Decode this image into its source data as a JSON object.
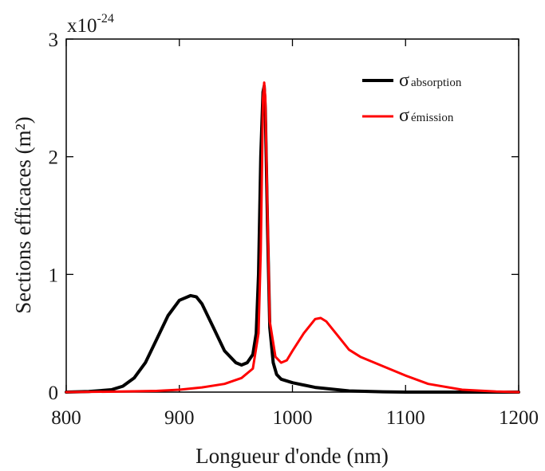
{
  "chart_data": {
    "type": "line",
    "xlabel": "Longueur d'onde (nm)",
    "ylabel": "Sections efficaces (m²)",
    "multiplier": {
      "base": "x10",
      "exponent": "-24"
    },
    "xlim": [
      800,
      1200
    ],
    "ylim": [
      0,
      3
    ],
    "xticks": [
      800,
      900,
      1000,
      1100,
      1200
    ],
    "yticks": [
      0,
      1,
      2,
      3
    ],
    "grid": false,
    "legend_position": "top-right",
    "series": [
      {
        "name": "σabsorption",
        "sigma": "σ",
        "label": "absorption",
        "color": "#000000",
        "x": [
          800,
          820,
          840,
          850,
          860,
          870,
          880,
          890,
          900,
          910,
          915,
          920,
          930,
          940,
          950,
          955,
          960,
          965,
          968,
          970,
          972,
          974,
          975,
          976,
          978,
          980,
          983,
          986,
          990,
          1000,
          1020,
          1050,
          1080,
          1100,
          1150,
          1200
        ],
        "y": [
          0.0,
          0.005,
          0.02,
          0.05,
          0.12,
          0.25,
          0.45,
          0.65,
          0.78,
          0.82,
          0.81,
          0.75,
          0.55,
          0.35,
          0.25,
          0.23,
          0.25,
          0.32,
          0.5,
          1.0,
          2.0,
          2.55,
          2.6,
          2.4,
          1.4,
          0.55,
          0.25,
          0.15,
          0.11,
          0.08,
          0.04,
          0.01,
          0.003,
          0.0,
          0.0,
          0.0
        ]
      },
      {
        "name": "σémission",
        "sigma": "σ",
        "label": "émission",
        "color": "#ff0000",
        "x": [
          800,
          850,
          880,
          900,
          920,
          940,
          955,
          965,
          970,
          972,
          974,
          975,
          976,
          978,
          980,
          985,
          990,
          995,
          1000,
          1010,
          1020,
          1025,
          1030,
          1040,
          1050,
          1060,
          1080,
          1100,
          1120,
          1150,
          1180,
          1200
        ],
        "y": [
          0.0,
          0.005,
          0.01,
          0.02,
          0.04,
          0.07,
          0.12,
          0.2,
          0.5,
          1.2,
          2.5,
          2.63,
          2.5,
          1.5,
          0.6,
          0.3,
          0.25,
          0.27,
          0.35,
          0.5,
          0.62,
          0.63,
          0.6,
          0.48,
          0.36,
          0.3,
          0.22,
          0.14,
          0.07,
          0.02,
          0.005,
          0.0
        ]
      }
    ]
  }
}
